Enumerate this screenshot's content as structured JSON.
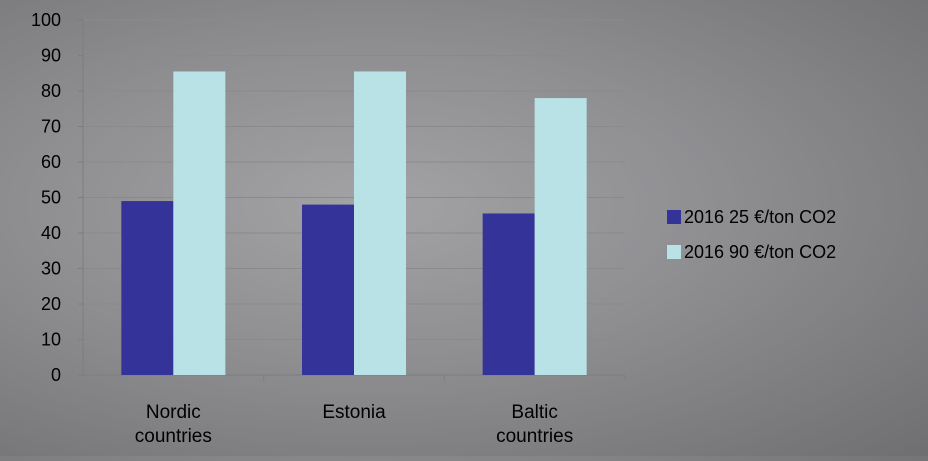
{
  "chart_data": {
    "type": "bar",
    "title": "",
    "xlabel": "",
    "ylabel": "",
    "categories": [
      [
        "Nordic",
        "countries"
      ],
      [
        "Estonia"
      ],
      [
        "Baltic",
        "countries"
      ]
    ],
    "series": [
      {
        "name": "2016 25 €/ton CO2",
        "values": [
          49,
          48,
          45.5
        ],
        "color": "#333399"
      },
      {
        "name": "2016 90 €/ton CO2",
        "values": [
          85.5,
          85.5,
          78
        ],
        "color": "#b9e2e6"
      }
    ],
    "ylim": [
      0,
      100
    ],
    "yticks": [
      0,
      10,
      20,
      30,
      40,
      50,
      60,
      70,
      80,
      90,
      100
    ],
    "grid": true,
    "legend_position": "right",
    "colors": {
      "axis": "#7d7d7d",
      "grid": "#8a8a8d"
    }
  }
}
